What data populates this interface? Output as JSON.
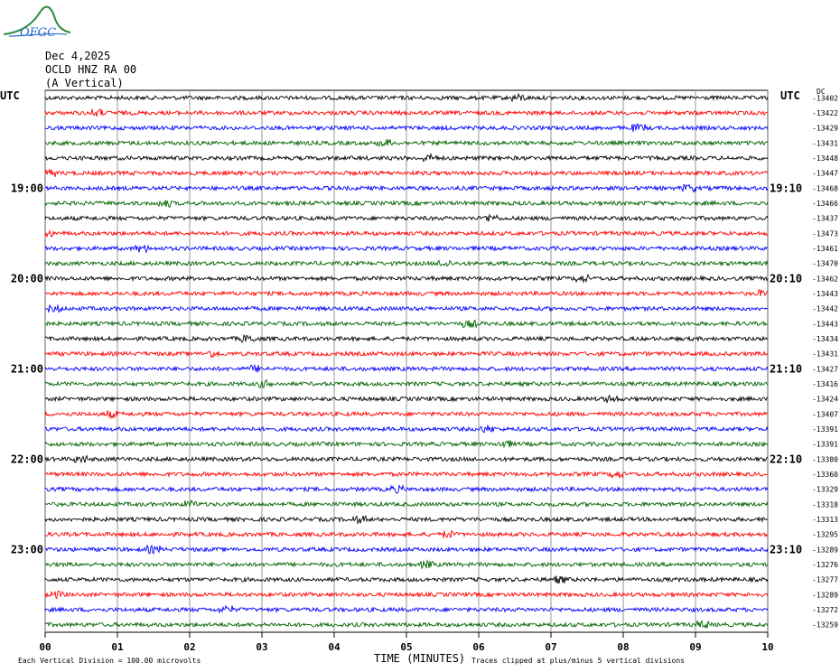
{
  "logo": {
    "text": "OFGC",
    "color": "#2a8a3a"
  },
  "header": {
    "date": "Dec 4,2025",
    "station": "OCLD HNZ RA 00",
    "component": "(A Vertical)"
  },
  "chart_data": {
    "type": "line",
    "title": "",
    "left_axis_label": "UTC",
    "right_axis_label": "UTC",
    "right_corner_label": "DC",
    "xlabel": "TIME (MINUTES)",
    "xlim": [
      0,
      10
    ],
    "x_ticks": [
      "00",
      "01",
      "02",
      "03",
      "04",
      "05",
      "06",
      "07",
      "08",
      "09",
      "10"
    ],
    "left_hour_labels": [
      {
        "trace": 6,
        "label": "19:00"
      },
      {
        "trace": 12,
        "label": "20:00"
      },
      {
        "trace": 18,
        "label": "21:00"
      },
      {
        "trace": 24,
        "label": "22:00"
      },
      {
        "trace": 30,
        "label": "23:00"
      }
    ],
    "right_hour_labels": [
      {
        "trace": 6,
        "label": "19:10"
      },
      {
        "trace": 12,
        "label": "20:10"
      },
      {
        "trace": 18,
        "label": "21:10"
      },
      {
        "trace": 24,
        "label": "22:10"
      },
      {
        "trace": 30,
        "label": "23:10"
      }
    ],
    "trace_colors": [
      "#000000",
      "#ff0000",
      "#0000ff",
      "#006400"
    ],
    "dc_offsets": [
      -13402,
      -13422,
      -13429,
      -13431,
      -13448,
      -13447,
      -13468,
      -13466,
      -13437,
      -13473,
      -13461,
      -13470,
      -13462,
      -13443,
      -13442,
      -13443,
      -13434,
      -13431,
      -13427,
      -13416,
      -13424,
      -13407,
      -13391,
      -13391,
      -13380,
      -13360,
      -13329,
      -13318,
      -13313,
      -13295,
      -13289,
      -13276,
      -13277,
      -13289,
      -13272,
      -13259
    ],
    "footer_left": "Each Vertical Division =  100.00 microvolts",
    "footer_right": "Traces clipped at plus/minus 5 vertical divisions"
  }
}
